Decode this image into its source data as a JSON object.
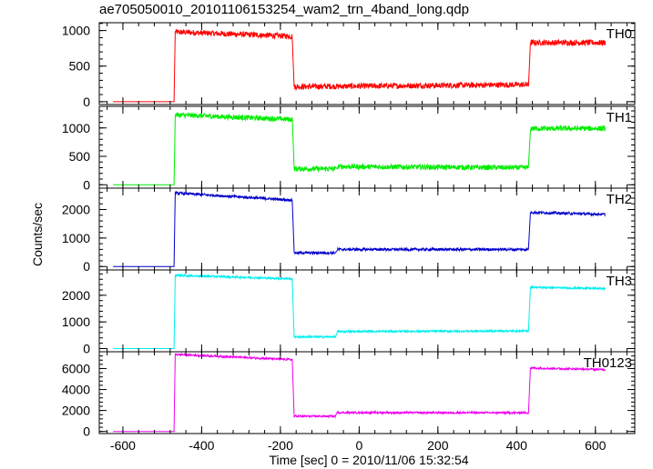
{
  "title": "ae705050010_20101106153254_wam2_trn_4band_long.qdp",
  "ylabel": "Counts/sec",
  "xlabel": "Time [sec] 0 = 2010/11/06 15:32:54",
  "chart_data": {
    "type": "line",
    "xlim": [
      -660,
      700
    ],
    "x_ticks": [
      -600,
      -400,
      -200,
      0,
      200,
      400,
      600
    ],
    "panels": [
      {
        "name": "TH0",
        "color": "#ff0000",
        "ylim": [
          -40,
          1110
        ],
        "y_ticks": [
          0,
          500,
          1000
        ],
        "noise": 40,
        "segments": [
          {
            "x0": -625,
            "x1": -470,
            "y0": 0,
            "y1": 0
          },
          {
            "x0": -467,
            "x1": -170,
            "y0": 980,
            "y1": 920
          },
          {
            "x0": -165,
            "x1": 430,
            "y0": 210,
            "y1": 240
          },
          {
            "x0": 435,
            "x1": 625,
            "y0": 830,
            "y1": 830
          }
        ]
      },
      {
        "name": "TH1",
        "color": "#00ee00",
        "ylim": [
          -60,
          1380
        ],
        "y_ticks": [
          0,
          500,
          1000
        ],
        "noise": 45,
        "segments": [
          {
            "x0": -625,
            "x1": -470,
            "y0": 0,
            "y1": 0
          },
          {
            "x0": -467,
            "x1": -170,
            "y0": 1230,
            "y1": 1150
          },
          {
            "x0": -165,
            "x1": -60,
            "y0": 280,
            "y1": 280
          },
          {
            "x0": -55,
            "x1": 430,
            "y0": 320,
            "y1": 300
          },
          {
            "x0": 435,
            "x1": 625,
            "y0": 990,
            "y1": 990
          }
        ]
      },
      {
        "name": "TH2",
        "color": "#0000cc",
        "ylim": [
          -120,
          2750
        ],
        "y_ticks": [
          0,
          1000,
          2000
        ],
        "noise": 45,
        "segments": [
          {
            "x0": -625,
            "x1": -470,
            "y0": 0,
            "y1": 0
          },
          {
            "x0": -467,
            "x1": -170,
            "y0": 2580,
            "y1": 2330
          },
          {
            "x0": -165,
            "x1": -60,
            "y0": 480,
            "y1": 480
          },
          {
            "x0": -55,
            "x1": 430,
            "y0": 600,
            "y1": 600
          },
          {
            "x0": 435,
            "x1": 625,
            "y0": 1900,
            "y1": 1830
          }
        ]
      },
      {
        "name": "TH3",
        "color": "#00eeee",
        "ylim": [
          -120,
          2950
        ],
        "y_ticks": [
          0,
          1000,
          2000
        ],
        "noise": 35,
        "segments": [
          {
            "x0": -625,
            "x1": -470,
            "y0": 0,
            "y1": 0
          },
          {
            "x0": -467,
            "x1": -170,
            "y0": 2750,
            "y1": 2620
          },
          {
            "x0": -165,
            "x1": -60,
            "y0": 440,
            "y1": 440
          },
          {
            "x0": -55,
            "x1": 430,
            "y0": 640,
            "y1": 660
          },
          {
            "x0": 435,
            "x1": 625,
            "y0": 2300,
            "y1": 2250
          }
        ]
      },
      {
        "name": "TH0123",
        "color": "#ee00ee",
        "ylim": [
          -200,
          7600
        ],
        "y_ticks": [
          0,
          2000,
          4000,
          6000
        ],
        "noise": 90,
        "segments": [
          {
            "x0": -625,
            "x1": -470,
            "y0": 0,
            "y1": 0
          },
          {
            "x0": -467,
            "x1": -170,
            "y0": 7350,
            "y1": 6850
          },
          {
            "x0": -165,
            "x1": -60,
            "y0": 1450,
            "y1": 1450
          },
          {
            "x0": -55,
            "x1": 430,
            "y0": 1800,
            "y1": 1780
          },
          {
            "x0": 435,
            "x1": 625,
            "y0": 6050,
            "y1": 5900
          }
        ]
      }
    ]
  }
}
